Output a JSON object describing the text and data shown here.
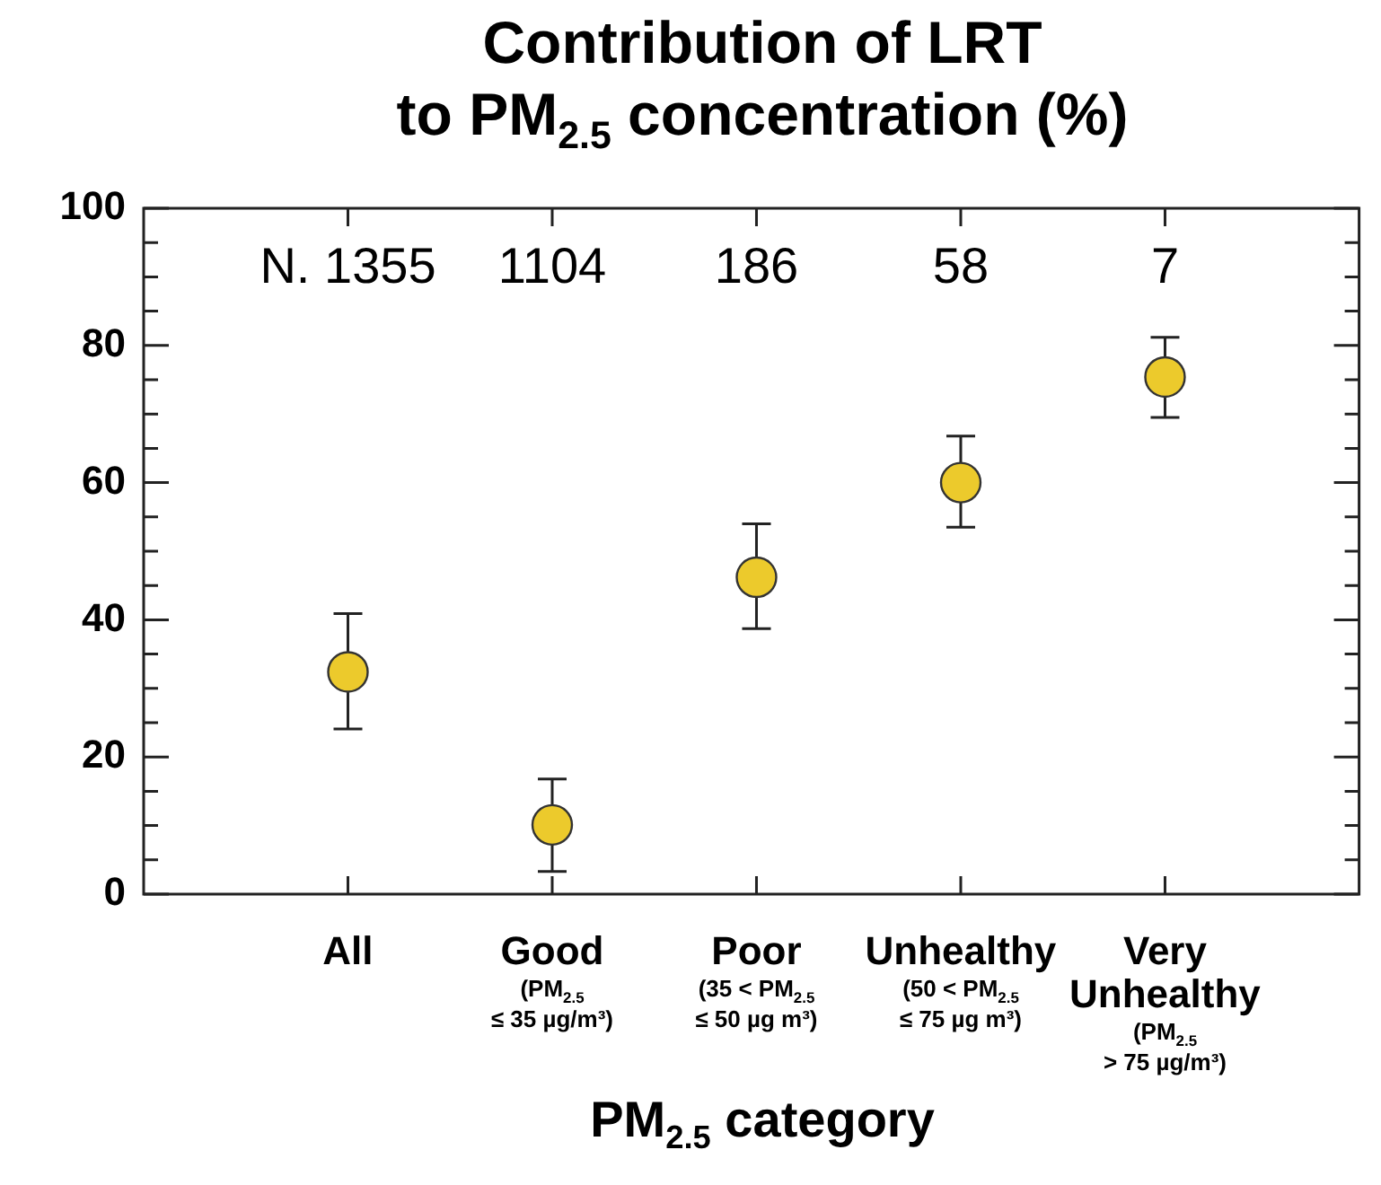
{
  "chart_data": {
    "type": "scatter",
    "title": "Contribution of LRT\nto PM$_{2.5}$ concentration (%)",
    "xlabel": "PM$_{2.5}$ category",
    "categories": [
      "All",
      "Good\n(PM$_{2.5}$\n≤ 35 µg/m³)",
      "Poor\n(35 < PM$_{2.5}$\n≤ 50 µg m³)",
      "Unhealthy\n(50 < PM$_{2.5}$\n≤ 75 µg m³)",
      "Very\nUnhealthy\n(PM$_{2.5}$\n> 75 µg/m³)"
    ],
    "values": [
      32.4,
      10.1,
      46.2,
      60.0,
      75.4
    ],
    "errors": [
      [
        24.1,
        40.9
      ],
      [
        3.3,
        16.8
      ],
      [
        38.7,
        54.0
      ],
      [
        53.5,
        66.8
      ],
      [
        69.5,
        81.2
      ]
    ],
    "color": "#ecca2c",
    "marker": "circle",
    "ylim": [
      0,
      100
    ],
    "yticks": [
      0,
      {
        "value": 5,
        "label": null
      },
      {
        "value": 10,
        "label": null
      },
      {
        "value": 15,
        "label": null
      },
      20,
      {
        "value": 25,
        "label": null
      },
      {
        "value": 30,
        "label": null
      },
      {
        "value": 35,
        "label": null
      },
      40,
      {
        "value": 45,
        "label": null
      },
      {
        "value": 50,
        "label": null
      },
      {
        "value": 55,
        "label": null
      },
      60,
      {
        "value": 65,
        "label": null
      },
      {
        "value": 70,
        "label": null
      },
      {
        "value": 75,
        "label": null
      },
      80,
      {
        "value": 85,
        "label": null
      },
      {
        "value": 90,
        "label": null
      },
      {
        "value": 95,
        "label": null
      },
      100
    ],
    "annotations": [
      "N. 1355",
      "1104",
      "186",
      "58",
      "7"
    ],
    "grid": false,
    "legend": false
  }
}
